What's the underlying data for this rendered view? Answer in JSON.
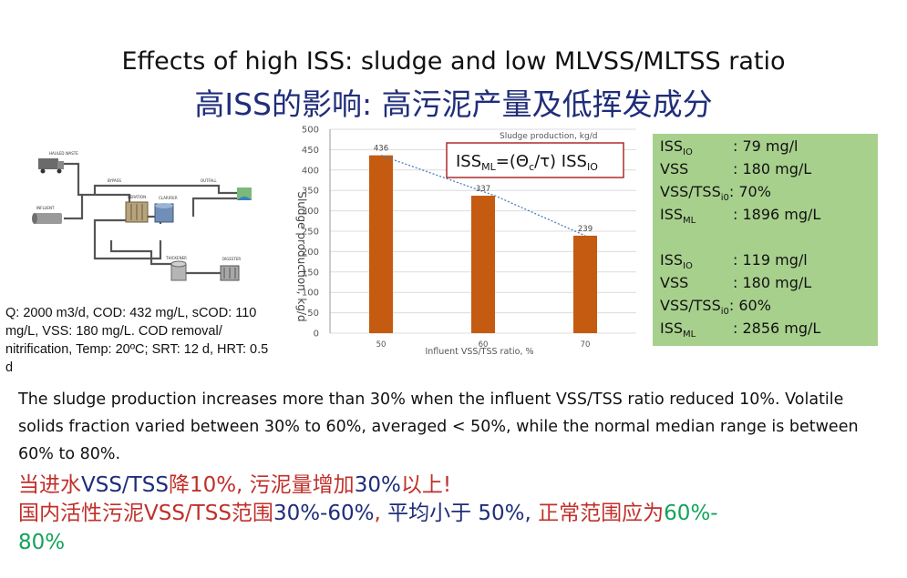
{
  "title_en": "Effects of high ISS: sludge and low MLVSS/MLTSS ratio",
  "title_cn": "高ISS的影响: 高污泥产量及低挥发成分",
  "diagram_labels": {
    "waste": "HAULED WASTE",
    "influent": "INFLUENT",
    "bypass": "BYPASS",
    "aeration": "AERATION",
    "clarifier": "CLARIFIER",
    "outfall": "OUTFALL",
    "thickener": "THICKENER",
    "digester": "DIGESTER"
  },
  "params_text": "Q: 2000 m3/d, COD: 432 mg/L, sCOD: 110 mg/L, VSS: 180 mg/L. COD removal/ nitrification, Temp: 20ºC; SRT: 12 d,  HRT: 0.5 d",
  "chart_data": {
    "type": "bar",
    "title": "Sludge production, kg/d",
    "categories": [
      "50",
      "60",
      "70"
    ],
    "values": [
      436,
      337,
      239
    ],
    "xlabel": "Influent VSS/TSS ratio, %",
    "ylabel": "Sludge production, kg/d",
    "ylim": [
      0,
      500
    ],
    "yticks": [
      "0",
      "50",
      "100",
      "150",
      "200",
      "250",
      "300",
      "350",
      "400",
      "450",
      "500"
    ],
    "bar_color": "#c55a11",
    "trendline": "dotted",
    "grid": true,
    "formula": {
      "a": "ISS",
      "a_sub": "ML",
      "b": "=(Θ",
      "b_sub": "c",
      "c": "/τ) ISS",
      "c_sub": "IO"
    }
  },
  "box": {
    "color": "#a8d08d",
    "group1": [
      {
        "label": "ISS",
        "sub": "IO",
        "value": ": 79 mg/l"
      },
      {
        "label": "VSS",
        "sub": "",
        "value": ": 180 mg/L"
      },
      {
        "label": "VSS/TSS",
        "sub": "i0",
        "value": ": 70%"
      },
      {
        "label": "ISS",
        "sub": "ML",
        "value": ": 1896 mg/L"
      }
    ],
    "group2": [
      {
        "label": "ISS",
        "sub": "IO",
        "value": ": 119 mg/l"
      },
      {
        "label": "VSS",
        "sub": "",
        "value": ": 180 mg/L"
      },
      {
        "label": "VSS/TSS",
        "sub": "i0",
        "value": ": 60%"
      },
      {
        "label": "ISS",
        "sub": "ML",
        "value": ": 2856 mg/L"
      }
    ]
  },
  "body_en": "The sludge production increases more than 30% when the influent VSS/TSS ratio reduced 10%. Volatile solids fraction varied between 30% to 60%, averaged < 50%, while the normal median range is between 60% to 80%.",
  "cn1": {
    "a": "当进水",
    "b": "VSS/TSS",
    "c": "降10%, 污泥量增加",
    "d": "30%",
    "e": "以上!"
  },
  "cn2": {
    "a": "国内活性污泥VSS/TSS范围",
    "b": "30%-60%",
    "c": ", ",
    "d": "平均小于 50%,",
    "e": " 正常范围应为",
    "f": "60%-",
    "g": "80%"
  }
}
